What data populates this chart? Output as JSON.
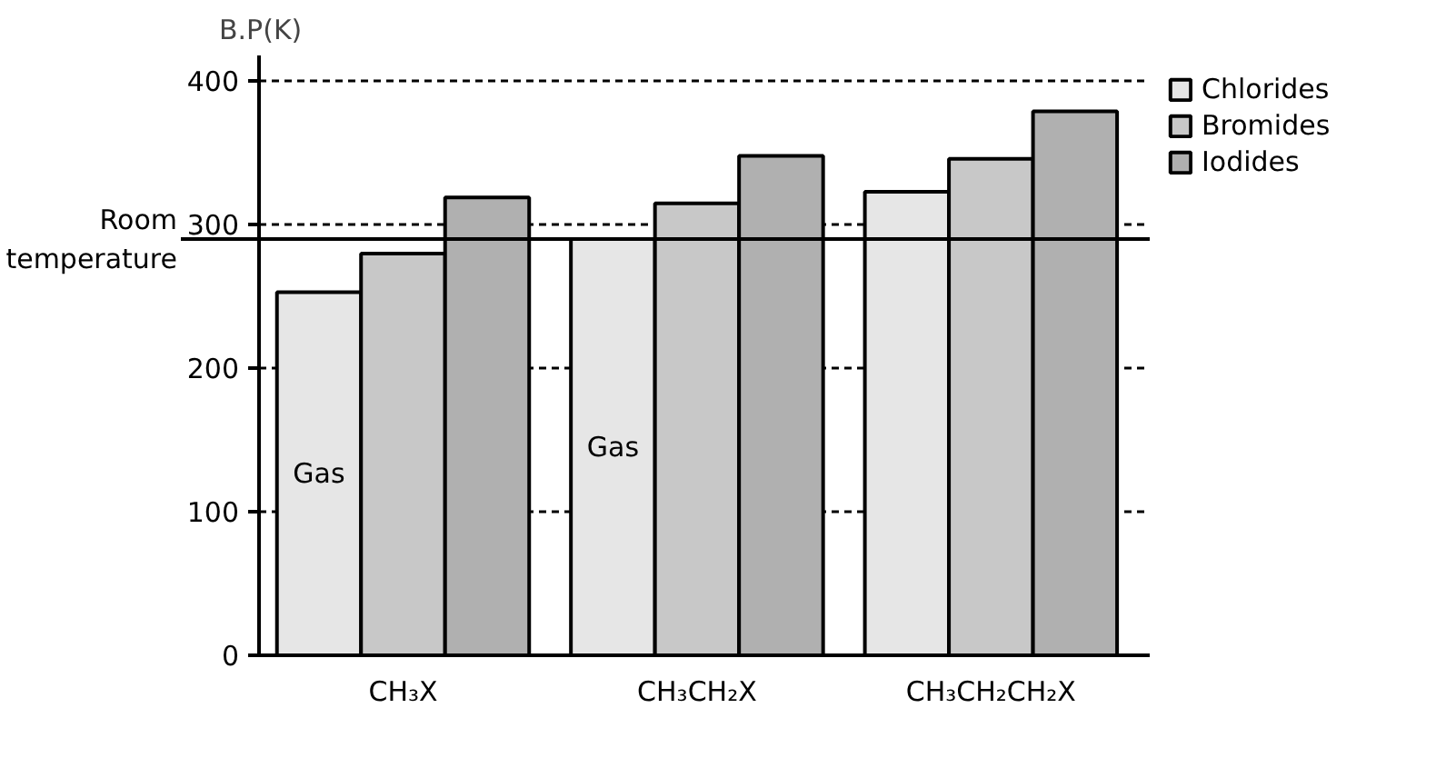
{
  "chart_data": {
    "type": "bar",
    "ylabel": "B.P(K)",
    "categories": [
      "CH₃X",
      "CH₃CH₂X",
      "CH₃CH₂CH₂X"
    ],
    "series": [
      {
        "name": "Chlorides",
        "color": "#e6e6e6",
        "values": [
          253,
          290,
          323
        ]
      },
      {
        "name": "Bromides",
        "color": "#c8c8c8",
        "values": [
          280,
          315,
          346
        ]
      },
      {
        "name": "Iodides",
        "color": "#b0b0b0",
        "values": [
          319,
          348,
          379
        ]
      }
    ],
    "ylim": [
      0,
      418
    ],
    "yticks": [
      0,
      100,
      200,
      300,
      400
    ],
    "grid": "y",
    "legend": "right",
    "ref_lines": [
      {
        "axis": "y",
        "value": 290,
        "label": "Room temperature"
      }
    ],
    "annotations": [
      "Gas",
      "Gas"
    ]
  }
}
